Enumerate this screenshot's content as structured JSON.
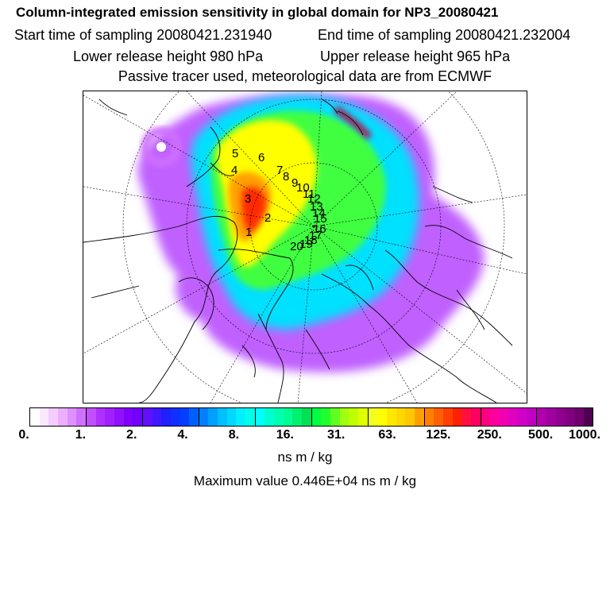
{
  "header": {
    "title": "Column-integrated emission sensitivity in global domain for NP3_20080421",
    "start_time": "Start time of sampling 20080421.231940",
    "end_time": "End time of sampling 20080421.232004",
    "lower_release": "Lower release height  980 hPa",
    "upper_release": "Upper release height  965 hPa",
    "tracer_note": "Passive tracer used, meteorological data are from ECMWF"
  },
  "map": {
    "projection": "north-polar-stereographic",
    "trajectory_labels": [
      "1",
      "2",
      "3",
      "4",
      "5",
      "6",
      "7",
      "8",
      "9",
      "10",
      "11",
      "12",
      "13",
      "14",
      "15",
      "16",
      "17",
      "18",
      "19",
      "20"
    ],
    "colors": {
      "background": "#ffffff",
      "plume_outer": "#a040ff",
      "plume_mid": "#00e0ff",
      "plume_inner": "#ffff00",
      "plume_core": "#ff2000",
      "coastline": "#000000"
    }
  },
  "colorbar": {
    "tick_labels": [
      "0.",
      "1.",
      "2.",
      "4.",
      "8.",
      "16.",
      "31.",
      "63.",
      "125.",
      "250.",
      "500.",
      "1000."
    ],
    "colors": [
      "#ffffff",
      "#fbe8ff",
      "#f4ccff",
      "#eab0ff",
      "#de90ff",
      "#d070ff",
      "#c050ff",
      "#b030ff",
      "#a020ff",
      "#9010ff",
      "#8000ff",
      "#7000ff",
      "#6010ff",
      "#4018ff",
      "#2020ff",
      "#1030ff",
      "#0040ff",
      "#0060ff",
      "#0080ff",
      "#00a0ff",
      "#00c0ff",
      "#00d8ff",
      "#00f0ff",
      "#00ffe8",
      "#00ffff",
      "#00ffd0",
      "#00ffb0",
      "#00ff90",
      "#00f070",
      "#00e050",
      "#00ff40",
      "#20ff30",
      "#60ff20",
      "#a0ff10",
      "#c0ff00",
      "#e0ff00",
      "#f0ff20",
      "#ffff00",
      "#ffe800",
      "#ffd800",
      "#ffc800",
      "#ffa000",
      "#ff8000",
      "#ff6000",
      "#ff4000",
      "#ff2000",
      "#ff1040",
      "#ff0060",
      "#ff0080",
      "#ff00a0",
      "#f000b0",
      "#e000c0",
      "#d000c8",
      "#c000c0",
      "#b000b0",
      "#a000a0",
      "#900090",
      "#800080",
      "#700070",
      "#500050"
    ],
    "unit": "ns m / kg",
    "max_value": "Maximum value  0.446E+04 ns m / kg"
  }
}
